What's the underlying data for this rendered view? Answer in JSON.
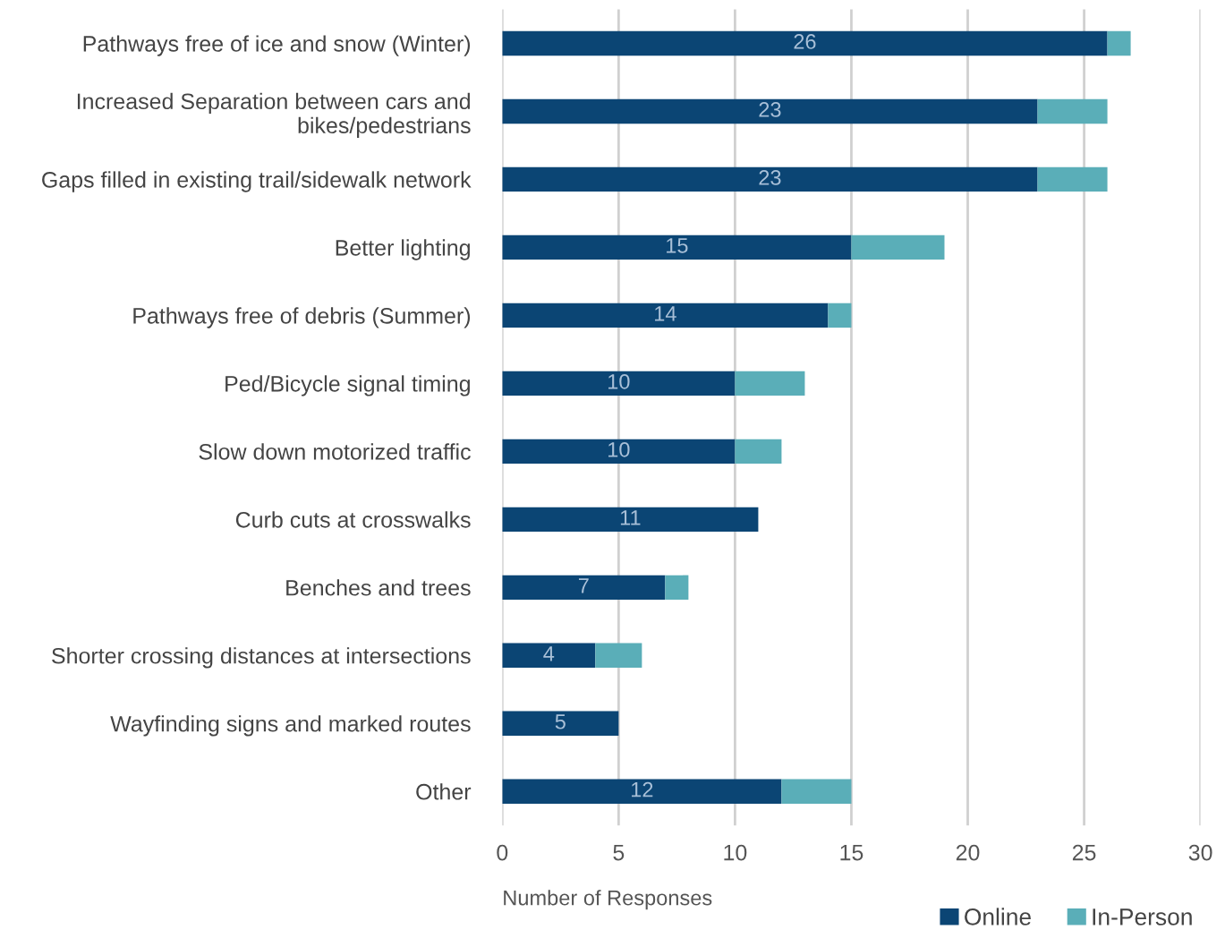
{
  "chart_data": {
    "type": "bar",
    "orientation": "horizontal",
    "stacked": true,
    "xlabel": "Number of Responses",
    "categories": [
      "Pathways free of ice and snow (Winter)",
      "Increased Separation between cars and bikes/pedestrians",
      "Gaps filled in existing trail/sidewalk network",
      "Better lighting",
      "Pathways free of debris (Summer)",
      "Ped/Bicycle signal timing",
      "Slow down motorized traffic",
      "Curb cuts at crosswalks",
      "Benches and trees",
      "Shorter crossing distances at intersections",
      "Wayfinding signs and marked routes",
      "Other"
    ],
    "series": [
      {
        "name": "Online",
        "color": "#0b4574",
        "values": [
          26,
          23,
          23,
          15,
          14,
          10,
          10,
          11,
          7,
          4,
          5,
          12
        ],
        "value_labels": [
          "26",
          "23",
          "23",
          "15",
          "14",
          "10",
          "10",
          "11",
          "7",
          "4",
          "5",
          "12"
        ]
      },
      {
        "name": "In-Person",
        "color": "#5aaeb8",
        "values": [
          1,
          3,
          3,
          4,
          1,
          3,
          2,
          0,
          1,
          2,
          0,
          3
        ]
      }
    ],
    "xlim": [
      0,
      30
    ],
    "xticks": [
      0,
      5,
      10,
      15,
      20,
      25,
      30
    ],
    "grid": "x",
    "legend": "bottom right"
  }
}
